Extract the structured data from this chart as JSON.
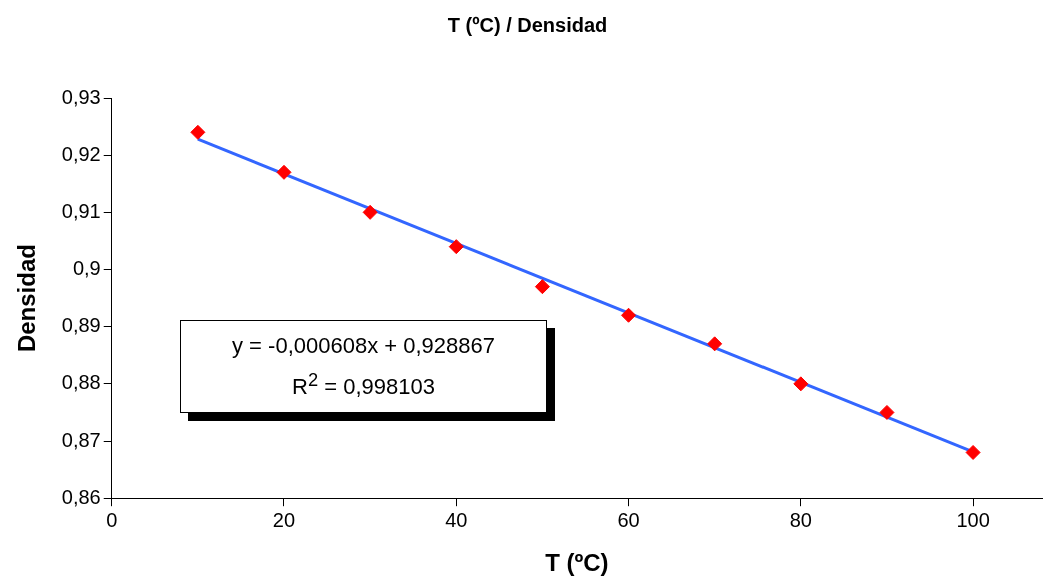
{
  "chart_data": {
    "type": "scatter",
    "title": "T (ºC) / Densidad",
    "xlabel": "T (ºC)",
    "ylabel": "Densidad",
    "x": [
      10,
      20,
      30,
      40,
      50,
      60,
      70,
      80,
      90,
      100
    ],
    "series": [
      {
        "type": "scatter",
        "color": "#ff0000",
        "marker": "diamond",
        "values": [
          0.924,
          0.917,
          0.91,
          0.904,
          0.897,
          0.892,
          0.887,
          0.88,
          0.875,
          0.868
        ]
      },
      {
        "type": "line",
        "color": "#3366ff",
        "marker": "none",
        "x": [
          10,
          100
        ],
        "values": [
          0.9228,
          0.8681
        ]
      }
    ],
    "xlim": [
      0,
      108
    ],
    "xticks": [
      0,
      20,
      40,
      60,
      80,
      100
    ],
    "ylim": [
      0.86,
      0.93
    ],
    "yticks": [
      {
        "value": 0.86,
        "label": "0,86"
      },
      {
        "value": 0.87,
        "label": "0,87"
      },
      {
        "value": 0.88,
        "label": "0,88"
      },
      {
        "value": 0.89,
        "label": "0,89"
      },
      {
        "value": 0.9,
        "label": "0,9"
      },
      {
        "value": 0.91,
        "label": "0,91"
      },
      {
        "value": 0.92,
        "label": "0,92"
      },
      {
        "value": 0.93,
        "label": "0,93"
      }
    ],
    "grid": false,
    "legend": false,
    "annotations": [
      "y = -0,000608x + 0,928867",
      "R$^{2}$ = 0,998103"
    ]
  }
}
